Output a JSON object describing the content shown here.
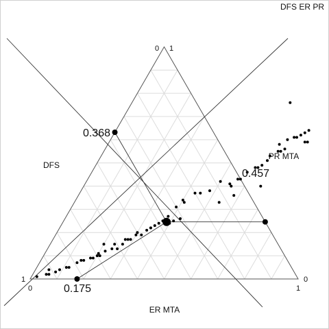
{
  "chart_data": {
    "type": "scatter",
    "subtype": "ternary",
    "title": "DFS ER PR",
    "axes": {
      "left": "DFS",
      "right": "PR MTA",
      "bottom": "ER MTA"
    },
    "corner_ticks": {
      "top_left": "0",
      "top_right": "1",
      "bottom_left_outer": "1",
      "bottom_left_inner": "0",
      "bottom_right_outer": "0",
      "bottom_right_inner": "1"
    },
    "grid": true,
    "grid_divisions": 10,
    "center_point": {
      "er": 0.386,
      "pr": 0.246,
      "dfs": 0.368
    },
    "annotations": [
      {
        "label": "0.368",
        "value": 0.368,
        "axis": "DFS"
      },
      {
        "label": "0.457",
        "value": 0.457,
        "axis": "PR MTA"
      },
      {
        "label": "0.175",
        "value": 0.175,
        "axis": "ER MTA"
      }
    ],
    "points": [
      [
        0.02,
        0.01
      ],
      [
        0.05,
        0.02
      ],
      [
        0.06,
        0.02
      ],
      [
        0.08,
        0.03
      ],
      [
        0.09,
        0.04
      ],
      [
        0.05,
        0.04
      ],
      [
        0.11,
        0.05
      ],
      [
        0.12,
        0.05
      ],
      [
        0.14,
        0.07
      ],
      [
        0.15,
        0.08
      ],
      [
        0.16,
        0.08
      ],
      [
        0.18,
        0.09
      ],
      [
        0.19,
        0.09
      ],
      [
        0.2,
        0.1
      ],
      [
        0.21,
        0.1
      ],
      [
        0.2,
        0.11
      ],
      [
        0.22,
        0.12
      ],
      [
        0.24,
        0.13
      ],
      [
        0.26,
        0.13
      ],
      [
        0.27,
        0.15
      ],
      [
        0.29,
        0.17
      ],
      [
        0.3,
        0.19
      ],
      [
        0.2,
        0.15
      ],
      [
        0.24,
        0.15
      ],
      [
        0.27,
        0.17
      ],
      [
        0.28,
        0.17
      ],
      [
        0.3,
        0.2
      ],
      [
        0.32,
        0.19
      ],
      [
        0.33,
        0.21
      ],
      [
        0.34,
        0.22
      ],
      [
        0.34,
        0.22
      ],
      [
        0.35,
        0.23
      ],
      [
        0.36,
        0.24
      ],
      [
        0.37,
        0.25
      ],
      [
        0.38,
        0.27
      ],
      [
        0.43,
        0.26
      ],
      [
        0.41,
        0.25
      ],
      [
        0.4,
        0.24
      ],
      [
        0.39,
        0.31
      ],
      [
        0.4,
        0.34
      ],
      [
        0.41,
        0.33
      ],
      [
        0.43,
        0.37
      ],
      [
        0.45,
        0.37
      ],
      [
        0.48,
        0.38
      ],
      [
        0.5,
        0.42
      ],
      [
        0.54,
        0.41
      ],
      [
        0.55,
        0.4
      ],
      [
        0.56,
        0.43
      ],
      [
        0.57,
        0.43
      ],
      [
        0.58,
        0.46
      ],
      [
        0.6,
        0.48
      ],
      [
        0.61,
        0.48
      ],
      [
        0.62,
        0.49
      ],
      [
        0.63,
        0.51
      ],
      [
        0.63,
        0.53
      ],
      [
        0.65,
        0.55
      ],
      [
        0.66,
        0.55
      ],
      [
        0.67,
        0.56
      ],
      [
        0.64,
        0.58
      ],
      [
        0.66,
        0.6
      ],
      [
        0.68,
        0.61
      ],
      [
        0.69,
        0.61
      ],
      [
        0.7,
        0.62
      ],
      [
        0.71,
        0.63
      ],
      [
        0.72,
        0.64
      ],
      [
        0.73,
        0.59
      ],
      [
        0.74,
        0.59
      ],
      [
        0.66,
        0.4
      ],
      [
        0.58,
        0.36
      ],
      [
        0.54,
        0.33
      ],
      [
        0.59,
        0.76
      ]
    ]
  }
}
